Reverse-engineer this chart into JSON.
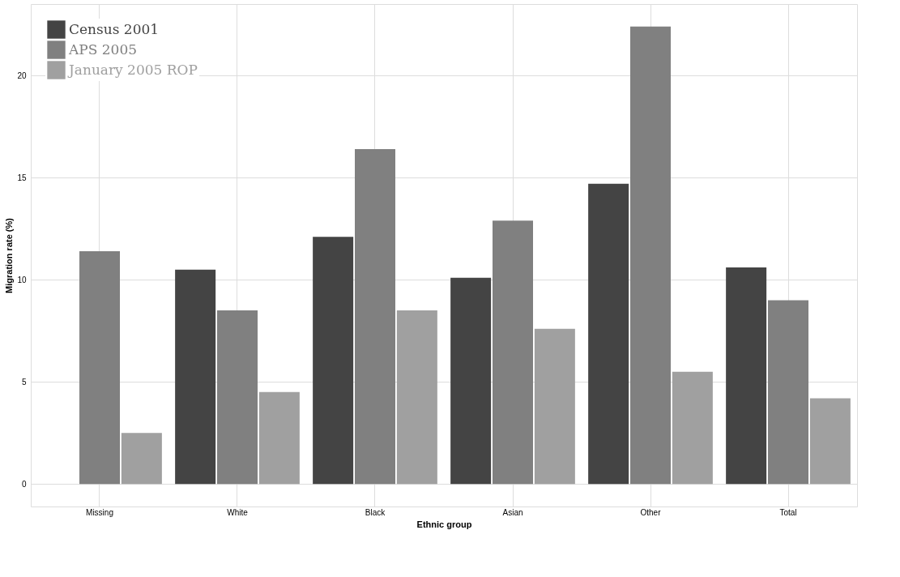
{
  "chart_data": {
    "type": "bar",
    "xlabel": "Ethnic group",
    "ylabel": "Migration rate (%)",
    "categories": [
      "Missing",
      "White",
      "Black",
      "Asian",
      "Other",
      "Total"
    ],
    "series": [
      {
        "name": "Census 2001",
        "color": "#444444",
        "values": [
          null,
          10.5,
          12.1,
          10.1,
          14.7,
          10.6
        ]
      },
      {
        "name": "APS 2005",
        "color": "#808080",
        "values": [
          11.4,
          8.5,
          16.4,
          12.9,
          22.4,
          9.0
        ]
      },
      {
        "name": "January 2005 ROP",
        "color": "#a0a0a0",
        "values": [
          2.5,
          4.5,
          8.5,
          7.6,
          5.5,
          4.2
        ]
      }
    ],
    "ylim": [
      -1.1,
      23.5
    ],
    "yticks": [
      0,
      5,
      10,
      15,
      20
    ],
    "grid": true,
    "legend": "top left"
  }
}
